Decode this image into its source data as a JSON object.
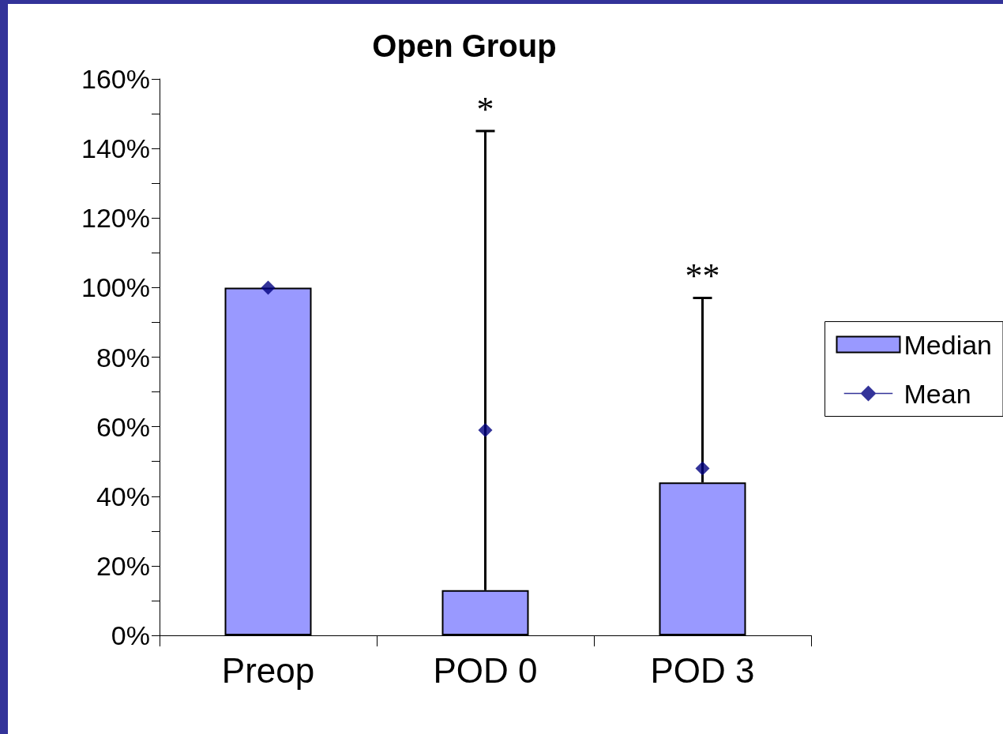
{
  "chart_data": {
    "type": "bar",
    "title": "Open Group",
    "categories": [
      "Preop",
      "POD 0",
      "POD 3"
    ],
    "series": [
      {
        "name": "Median",
        "color": "#9999ff",
        "values": [
          100,
          13,
          44
        ],
        "errors": [
          null,
          [
            13,
            145
          ],
          [
            44,
            97
          ]
        ]
      },
      {
        "name": "Mean",
        "type": "scatter",
        "color": "#000080",
        "values": [
          100,
          59,
          48
        ],
        "marker": "diamond"
      }
    ],
    "ylim": [
      0,
      160
    ],
    "yticks": [
      {
        "value": 0,
        "label": "0%"
      },
      {
        "value": 10,
        "label": null
      },
      {
        "value": 20,
        "label": "20%"
      },
      {
        "value": 30,
        "label": null
      },
      {
        "value": 40,
        "label": "40%"
      },
      {
        "value": 50,
        "label": null
      },
      {
        "value": 60,
        "label": "60%"
      },
      {
        "value": 70,
        "label": null
      },
      {
        "value": 80,
        "label": "80%"
      },
      {
        "value": 90,
        "label": null
      },
      {
        "value": 100,
        "label": "100%"
      },
      {
        "value": 110,
        "label": null
      },
      {
        "value": 120,
        "label": "120%"
      },
      {
        "value": 130,
        "label": null
      },
      {
        "value": 140,
        "label": "140%"
      },
      {
        "value": 150,
        "label": null
      },
      {
        "value": 160,
        "label": "160%"
      }
    ],
    "annotations": [
      "*",
      "**"
    ],
    "legend": "right"
  }
}
